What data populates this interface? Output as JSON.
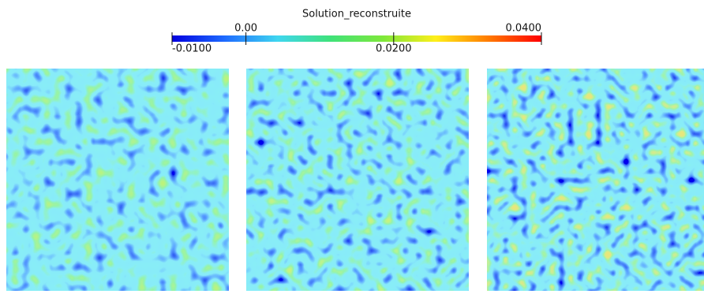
{
  "colorbar": {
    "title": "Solution_reconstruite",
    "range": [
      -0.01,
      0.04
    ],
    "ticks": [
      {
        "value": -0.01,
        "label": "-0.0100"
      },
      {
        "value": 0,
        "label": "0.00"
      },
      {
        "value": 0.02,
        "label": "0.0200"
      },
      {
        "value": 0.04,
        "label": "0.0400"
      }
    ],
    "colors": [
      "#0000e0",
      "#1e6bff",
      "#3fd6f0",
      "#3fe27a",
      "#7ee83a",
      "#ffef1a",
      "#ff7a00",
      "#ff0000"
    ]
  }
}
